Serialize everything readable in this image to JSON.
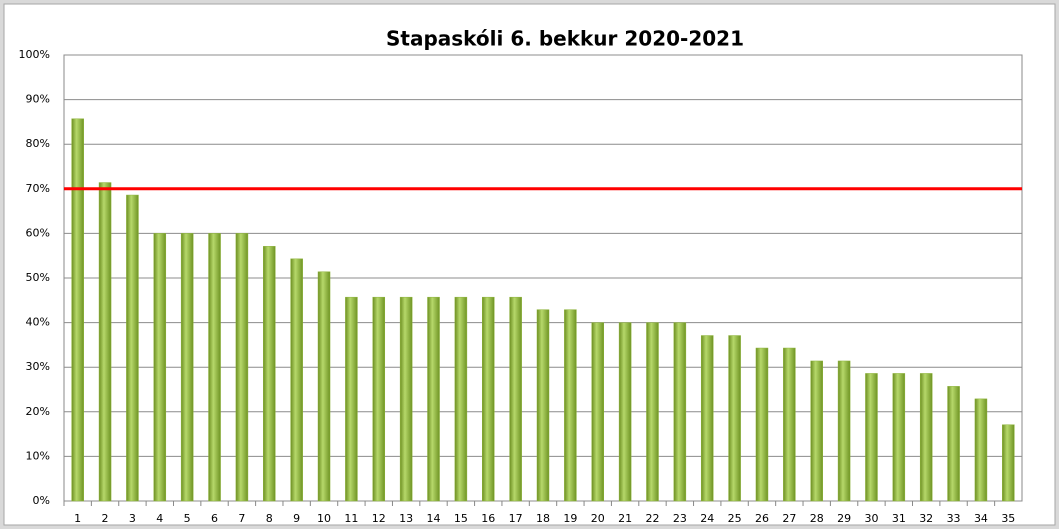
{
  "chart_data": {
    "type": "bar",
    "title": "Stapaskóli 6. bekkur 2020-2021",
    "categories": [
      1,
      2,
      3,
      4,
      5,
      6,
      7,
      8,
      9,
      10,
      11,
      12,
      13,
      14,
      15,
      16,
      17,
      18,
      19,
      20,
      21,
      22,
      23,
      24,
      25,
      26,
      27,
      28,
      29,
      30,
      31,
      32,
      33,
      34,
      35
    ],
    "values": [
      85.7,
      71.4,
      68.6,
      60,
      60,
      60,
      60,
      57.1,
      54.3,
      51.4,
      45.7,
      45.7,
      45.7,
      45.7,
      45.7,
      45.7,
      45.7,
      42.9,
      42.9,
      40,
      40,
      40,
      40,
      37.1,
      37.1,
      34.3,
      34.3,
      31.4,
      31.4,
      28.6,
      28.6,
      28.6,
      25.7,
      22.9,
      17.1
    ],
    "color": "#8db33a",
    "threshold": 70,
    "threshold_color": "#ff0000",
    "ylim": [
      0,
      100
    ],
    "yticks": [
      {
        "value": 0,
        "label": "0%"
      },
      {
        "value": 10,
        "label": "10%"
      },
      {
        "value": 20,
        "label": "20%"
      },
      {
        "value": 30,
        "label": "30%"
      },
      {
        "value": 40,
        "label": "40%"
      },
      {
        "value": 50,
        "label": "50%"
      },
      {
        "value": 60,
        "label": "60%"
      },
      {
        "value": 70,
        "label": "70%"
      },
      {
        "value": 80,
        "label": "80%"
      },
      {
        "value": 90,
        "label": "90%"
      },
      {
        "value": 100,
        "label": "100%"
      }
    ],
    "grid": true
  }
}
